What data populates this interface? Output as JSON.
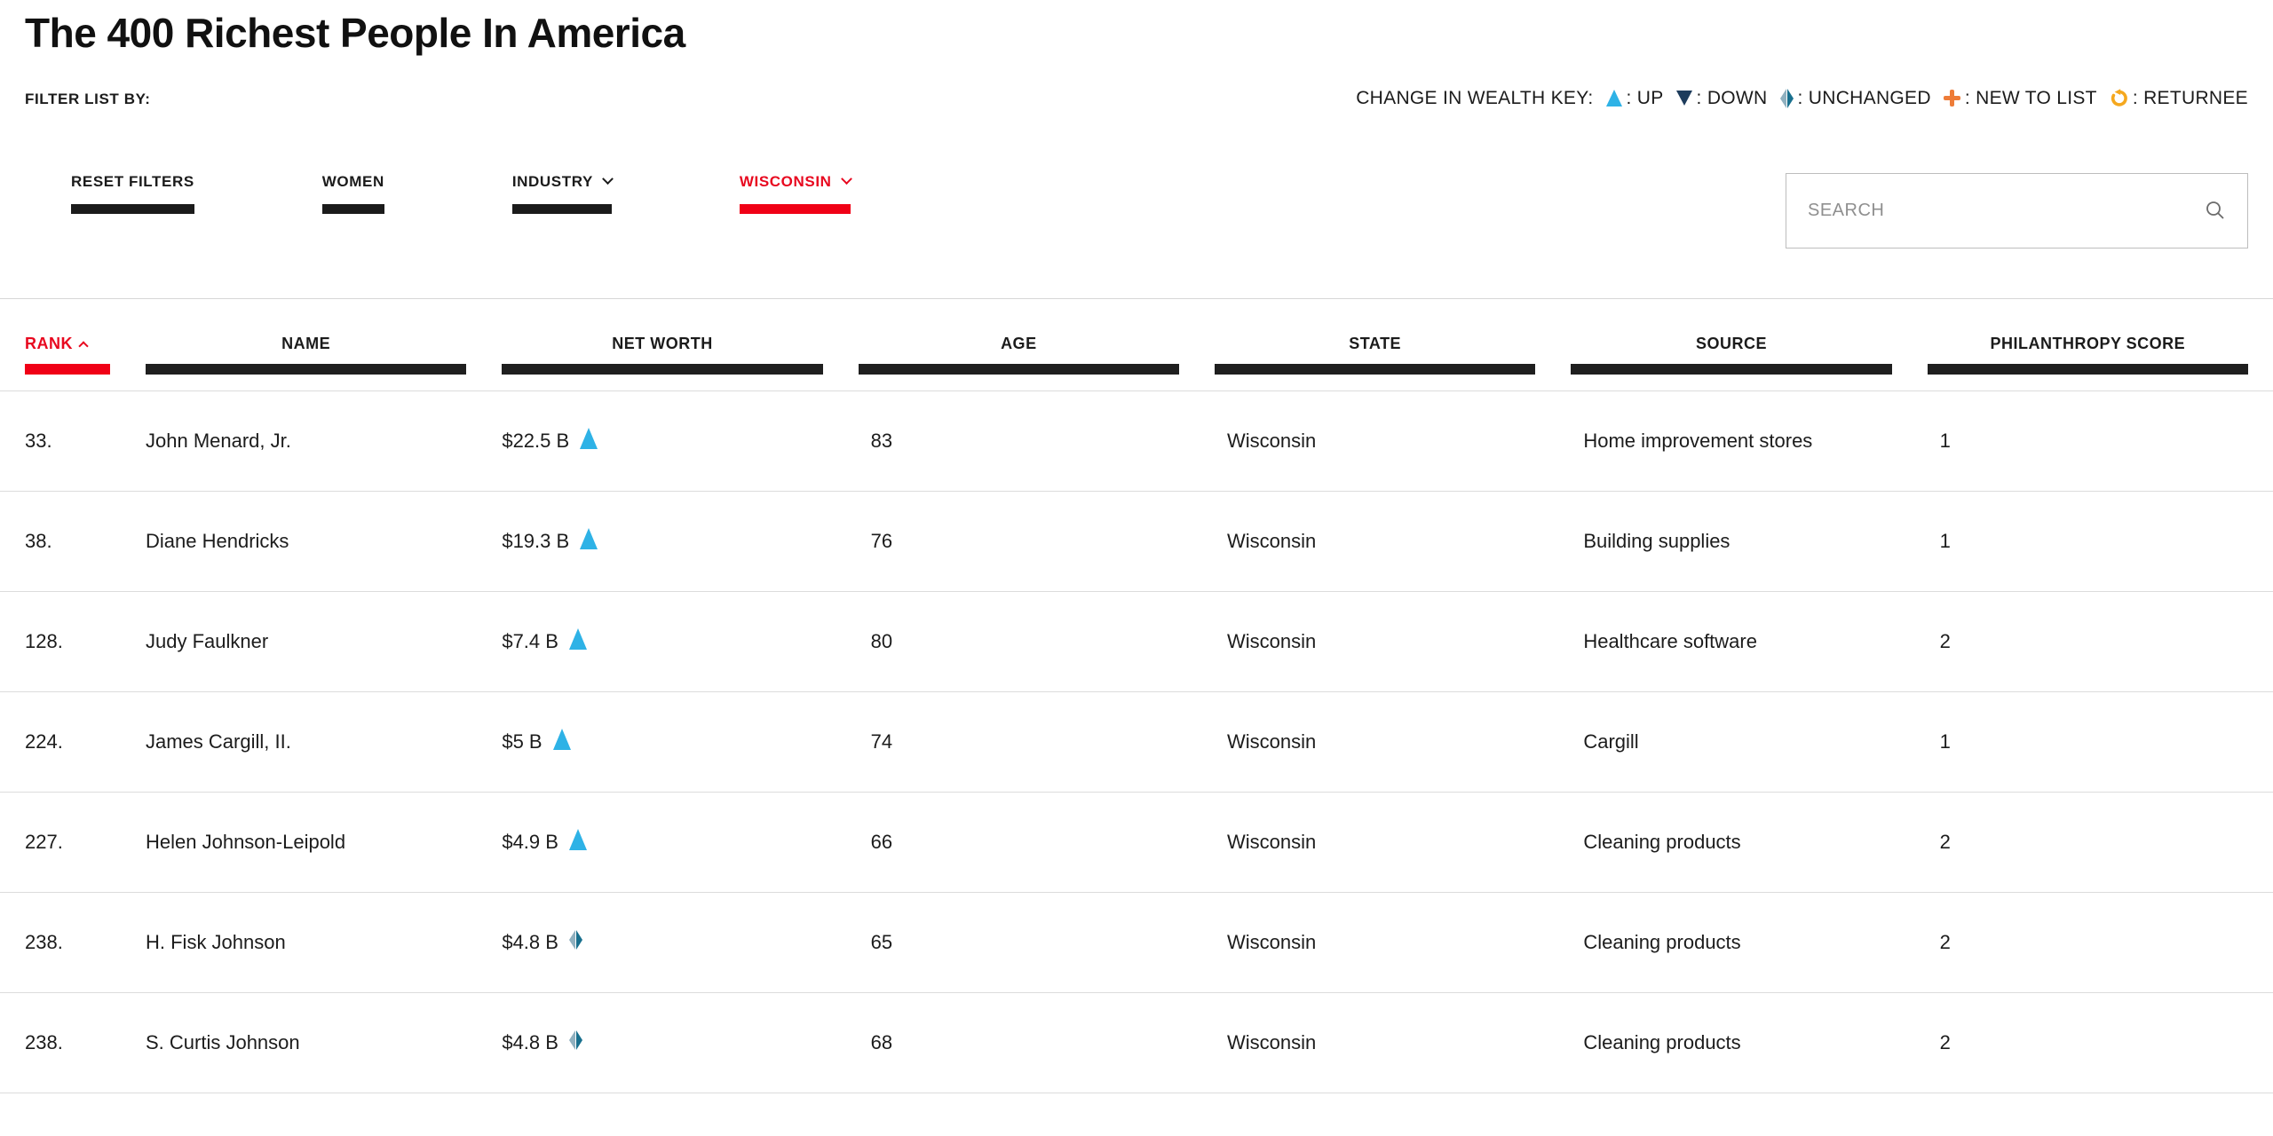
{
  "colors": {
    "accent_red": "#E8081F",
    "red_bar": "#F00016",
    "up_blue": "#2EB2E6",
    "down_navy": "#1D3C5C",
    "unchanged_light": "#8FB0BF",
    "unchanged_dark": "#19708E",
    "new_to_list_orange": "#EE7C38",
    "returnee_gold": "#F5A81E",
    "bar_black": "#1B1B1B"
  },
  "header": {
    "title": "The 400 Richest People In America",
    "filter_list_label": "FILTER LIST BY:",
    "wealth_key": {
      "label": "CHANGE IN WEALTH KEY:",
      "items": [
        {
          "icon": "up-triangle",
          "label": ": UP"
        },
        {
          "icon": "down-triangle",
          "label": ": DOWN"
        },
        {
          "icon": "split-diamond",
          "label": ": UNCHANGED"
        },
        {
          "icon": "plus",
          "label": ": NEW TO LIST"
        },
        {
          "icon": "circular-arrow",
          "label": ": RETURNEE"
        }
      ]
    }
  },
  "filters": {
    "buttons": [
      {
        "label": "RESET FILTERS",
        "active": false,
        "has_dropdown": false
      },
      {
        "label": "WOMEN",
        "active": false,
        "has_dropdown": false
      },
      {
        "label": "INDUSTRY",
        "active": false,
        "has_dropdown": true
      },
      {
        "label": "WISCONSIN",
        "active": true,
        "has_dropdown": true
      }
    ]
  },
  "search": {
    "placeholder": "SEARCH"
  },
  "table": {
    "columns": [
      "RANK",
      "NAME",
      "NET WORTH",
      "AGE",
      "STATE",
      "SOURCE",
      "PHILANTHROPY SCORE"
    ],
    "sorted_by": "RANK",
    "sort_direction": "asc",
    "rows": [
      {
        "rank": "33.",
        "name": "John Menard, Jr.",
        "net_worth": "$22.5 B",
        "change": "up",
        "age": "83",
        "state": "Wisconsin",
        "source": "Home improvement stores",
        "philanthropy_score": "1"
      },
      {
        "rank": "38.",
        "name": "Diane Hendricks",
        "net_worth": "$19.3 B",
        "change": "up",
        "age": "76",
        "state": "Wisconsin",
        "source": "Building supplies",
        "philanthropy_score": "1"
      },
      {
        "rank": "128.",
        "name": "Judy Faulkner",
        "net_worth": "$7.4 B",
        "change": "up",
        "age": "80",
        "state": "Wisconsin",
        "source": "Healthcare software",
        "philanthropy_score": "2"
      },
      {
        "rank": "224.",
        "name": "James Cargill, II.",
        "net_worth": "$5 B",
        "change": "up",
        "age": "74",
        "state": "Wisconsin",
        "source": "Cargill",
        "philanthropy_score": "1"
      },
      {
        "rank": "227.",
        "name": "Helen Johnson-Leipold",
        "net_worth": "$4.9 B",
        "change": "up",
        "age": "66",
        "state": "Wisconsin",
        "source": "Cleaning products",
        "philanthropy_score": "2"
      },
      {
        "rank": "238.",
        "name": "H. Fisk Johnson",
        "net_worth": "$4.8 B",
        "change": "unchanged",
        "age": "65",
        "state": "Wisconsin",
        "source": "Cleaning products",
        "philanthropy_score": "2"
      },
      {
        "rank": "238.",
        "name": "S. Curtis Johnson",
        "net_worth": "$4.8 B",
        "change": "unchanged",
        "age": "68",
        "state": "Wisconsin",
        "source": "Cleaning products",
        "philanthropy_score": "2"
      }
    ]
  }
}
